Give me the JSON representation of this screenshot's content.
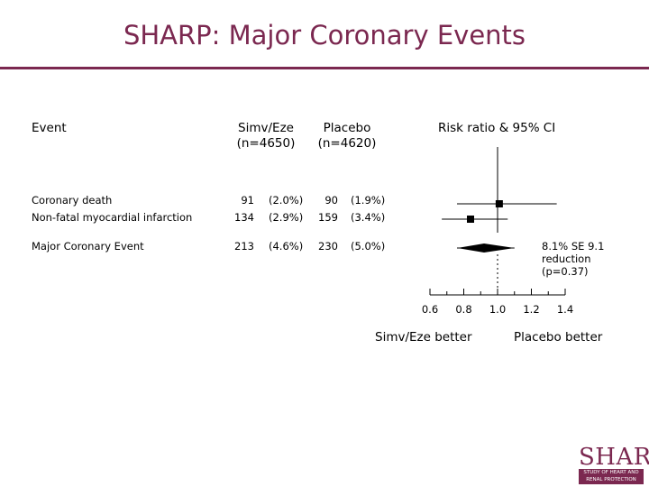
{
  "title": "SHARP: Major Coronary Events",
  "headers": {
    "event": "Event",
    "simv_eze": "Simv/Eze",
    "simv_eze_n": "(n=4650)",
    "placebo": "Placebo",
    "placebo_n": "(n=4620)",
    "risk_ratio": "Risk ratio & 95% CI"
  },
  "rows": [
    {
      "label": "Coronary death",
      "simv_n": "91",
      "simv_pct": "(2.0%)",
      "placebo_n": "90",
      "placebo_pct": "(1.9%)"
    },
    {
      "label": "Non-fatal myocardial infarction",
      "simv_n": "134",
      "simv_pct": "(2.9%)",
      "placebo_n": "159",
      "placebo_pct": "(3.4%)"
    },
    {
      "label": "Major Coronary Event",
      "simv_n": "213",
      "simv_pct": "(4.6%)",
      "placebo_n": "230",
      "placebo_pct": "(5.0%)"
    }
  ],
  "reduction_note": {
    "line1": "8.1% SE 9.1",
    "line2": "reduction",
    "line3": "(p=0.37)"
  },
  "bottom_labels": {
    "left": "Simv/Eze better",
    "right": "Placebo better"
  },
  "logo": {
    "word": "SHARP",
    "line1": "STUDY OF HEART AND",
    "line2": "RENAL PROTECTION"
  },
  "chart_data": {
    "type": "forest",
    "xlim": [
      0.6,
      1.4
    ],
    "xticks": [
      0.6,
      0.8,
      1.0,
      1.2,
      1.4
    ],
    "xtick_labels": [
      "0.6",
      "0.8",
      "1.0",
      "1.2",
      "1.4"
    ],
    "reference_line": 1.0,
    "points": [
      {
        "label": "Coronary death",
        "estimate": 1.01,
        "ci_low": 0.76,
        "ci_high": 1.35,
        "shape": "square"
      },
      {
        "label": "Non-fatal myocardial infarction",
        "estimate": 0.84,
        "ci_low": 0.67,
        "ci_high": 1.06,
        "shape": "square"
      },
      {
        "label": "Major Coronary Event",
        "estimate": 0.92,
        "ci_low": 0.76,
        "ci_high": 1.1,
        "shape": "diamond"
      }
    ],
    "colors": {
      "mark": "#000000",
      "title": "#7b2850"
    }
  }
}
